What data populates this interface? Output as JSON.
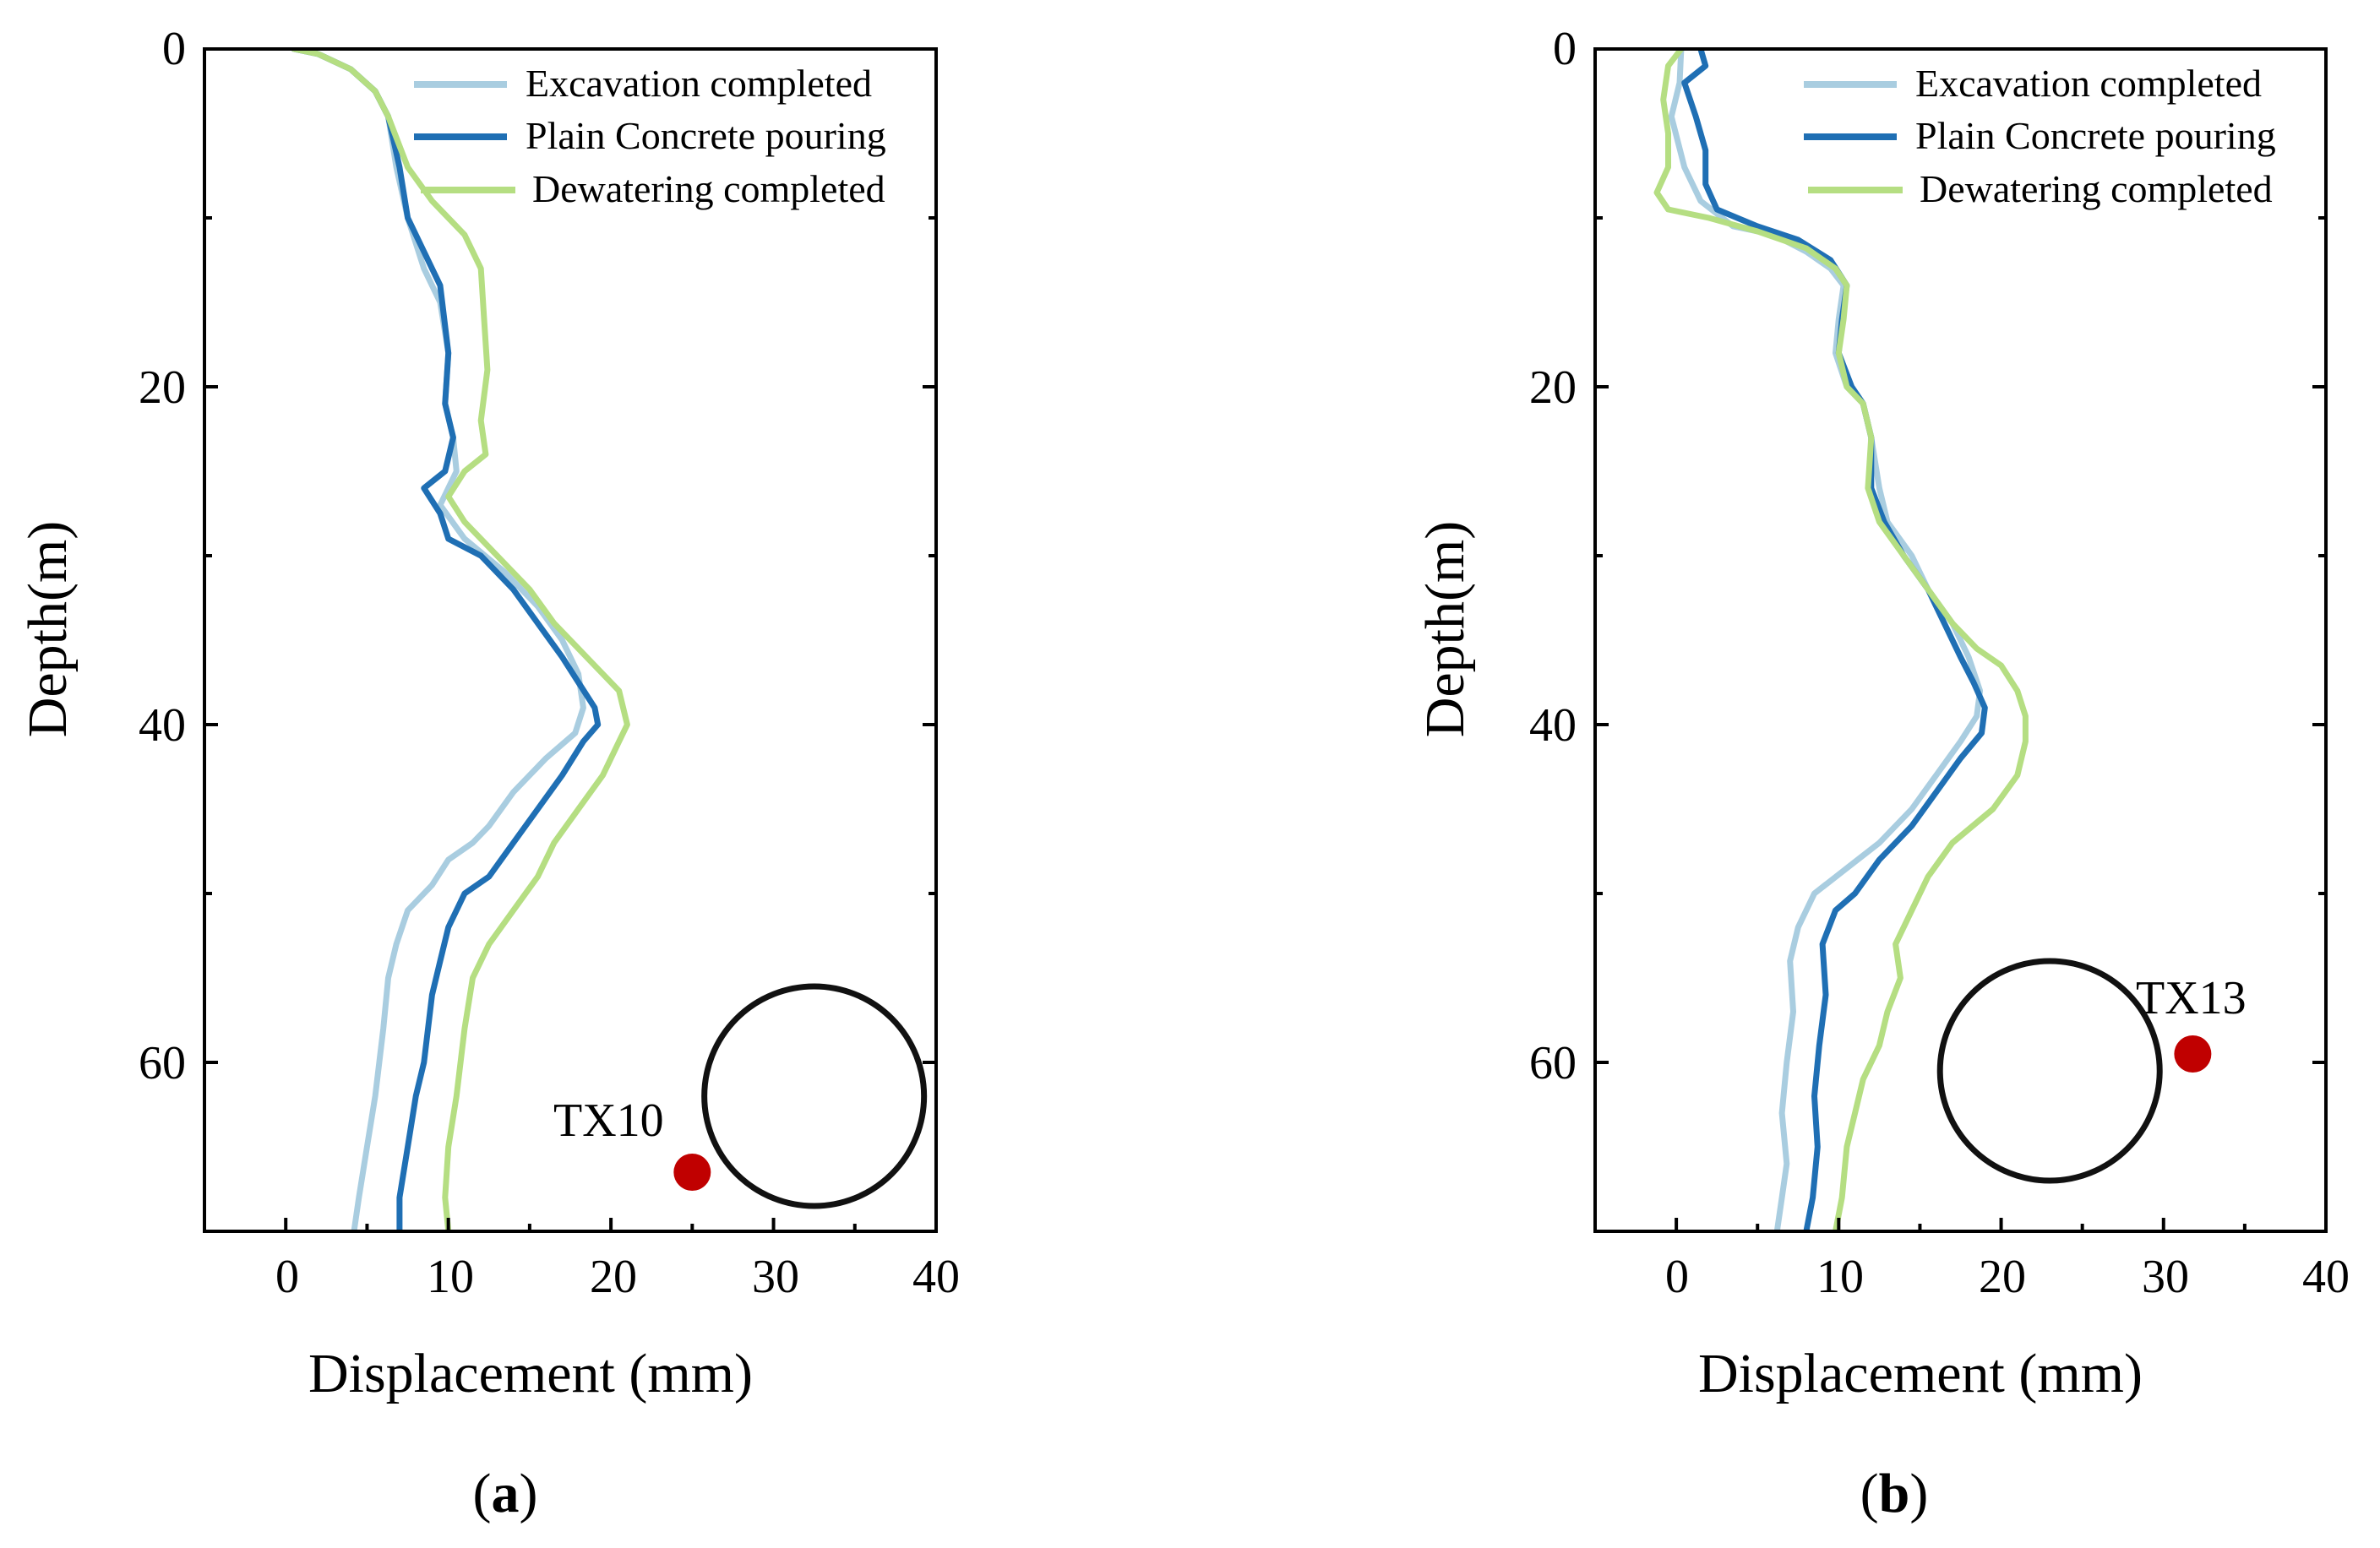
{
  "chart_data": [
    {
      "type": "line",
      "panel_label": "a",
      "xlabel": "Displacement (mm)",
      "ylabel": "Depth(m)",
      "xlim": [
        -5,
        40
      ],
      "ylim": [
        70,
        0
      ],
      "x_ticks": [
        0,
        10,
        20,
        30,
        40
      ],
      "y_ticks": [
        0,
        20,
        40,
        60
      ],
      "legend_position": "top-right",
      "series": [
        {
          "name": "Excavation completed",
          "color": "#a9cde0",
          "points": [
            [
              0.5,
              0
            ],
            [
              2,
              0.3
            ],
            [
              4,
              1.2
            ],
            [
              5.5,
              2.5
            ],
            [
              6.3,
              4
            ],
            [
              6.8,
              7
            ],
            [
              7.5,
              10
            ],
            [
              8.5,
              13
            ],
            [
              9.5,
              15
            ],
            [
              10,
              18
            ],
            [
              9.8,
              21
            ],
            [
              10.3,
              23
            ],
            [
              10.5,
              25
            ],
            [
              9.5,
              27
            ],
            [
              11,
              29
            ],
            [
              13.5,
              31
            ],
            [
              15.5,
              33
            ],
            [
              17,
              35
            ],
            [
              18,
              37
            ],
            [
              18.3,
              39
            ],
            [
              17.8,
              40.5
            ],
            [
              16,
              42
            ],
            [
              14,
              44
            ],
            [
              12.5,
              46
            ],
            [
              11.5,
              47
            ],
            [
              10,
              48
            ],
            [
              9,
              49.5
            ],
            [
              7.5,
              51
            ],
            [
              6.8,
              53
            ],
            [
              6.3,
              55
            ],
            [
              6,
              58
            ],
            [
              5.5,
              62
            ],
            [
              5,
              65
            ],
            [
              4.5,
              68
            ],
            [
              4.2,
              70
            ]
          ]
        },
        {
          "name": "Plain Concrete pouring",
          "color": "#1f6fb4",
          "points": [
            [
              0.5,
              0
            ],
            [
              2,
              0.3
            ],
            [
              4,
              1.2
            ],
            [
              5.5,
              2.5
            ],
            [
              6.3,
              4
            ],
            [
              7,
              7
            ],
            [
              7.5,
              10
            ],
            [
              8.5,
              12
            ],
            [
              9.5,
              14
            ],
            [
              10,
              18
            ],
            [
              9.8,
              21
            ],
            [
              10.3,
              23
            ],
            [
              9.8,
              25
            ],
            [
              8.5,
              26
            ],
            [
              9.5,
              27.5
            ],
            [
              10,
              29
            ],
            [
              12,
              30
            ],
            [
              14,
              32
            ],
            [
              15.5,
              34
            ],
            [
              17,
              36
            ],
            [
              18,
              37.5
            ],
            [
              19,
              39
            ],
            [
              19.2,
              40
            ],
            [
              18.3,
              41
            ],
            [
              17,
              43
            ],
            [
              15.5,
              45
            ],
            [
              14,
              47
            ],
            [
              12.5,
              49
            ],
            [
              11,
              50
            ],
            [
              10,
              52
            ],
            [
              9.5,
              54
            ],
            [
              9,
              56
            ],
            [
              8.5,
              60
            ],
            [
              8,
              62
            ],
            [
              7.5,
              65
            ],
            [
              7,
              68
            ],
            [
              7,
              70
            ]
          ]
        },
        {
          "name": "Dewatering completed",
          "color": "#b5de82",
          "points": [
            [
              0.5,
              0
            ],
            [
              2,
              0.3
            ],
            [
              4,
              1.2
            ],
            [
              5.5,
              2.5
            ],
            [
              6.3,
              4
            ],
            [
              7.5,
              7
            ],
            [
              9,
              9
            ],
            [
              11,
              11
            ],
            [
              12,
              13
            ],
            [
              12.2,
              16
            ],
            [
              12.4,
              19
            ],
            [
              12,
              22
            ],
            [
              12.3,
              24
            ],
            [
              11,
              25
            ],
            [
              10,
              26.5
            ],
            [
              11,
              28
            ],
            [
              13,
              30
            ],
            [
              15,
              32
            ],
            [
              16.5,
              34
            ],
            [
              18.5,
              36
            ],
            [
              20.5,
              38
            ],
            [
              21,
              40
            ],
            [
              20.5,
              41
            ],
            [
              19.5,
              43
            ],
            [
              18,
              45
            ],
            [
              16.5,
              47
            ],
            [
              15.5,
              49
            ],
            [
              14,
              51
            ],
            [
              12.5,
              53
            ],
            [
              11.5,
              55
            ],
            [
              11,
              58
            ],
            [
              10.5,
              62
            ],
            [
              10,
              65
            ],
            [
              9.8,
              68
            ],
            [
              10,
              70
            ]
          ]
        }
      ],
      "marker": {
        "label": "TX10",
        "x": 25,
        "y": 66.5,
        "color": "#c00000"
      },
      "tunnel_circle": {
        "cx": 32.5,
        "cy": 62
      }
    },
    {
      "type": "line",
      "panel_label": "b",
      "xlabel": "Displacement (mm)",
      "ylabel": "Depth(m)",
      "xlim": [
        -5,
        40
      ],
      "ylim": [
        70,
        0
      ],
      "x_ticks": [
        0,
        10,
        20,
        30,
        40
      ],
      "y_ticks": [
        0,
        20,
        40,
        60
      ],
      "legend_position": "top-right",
      "series": [
        {
          "name": "Excavation completed",
          "color": "#a9cde0",
          "points": [
            [
              0.3,
              0
            ],
            [
              0.2,
              2
            ],
            [
              -0.3,
              4
            ],
            [
              0.5,
              7
            ],
            [
              1.5,
              9
            ],
            [
              3.5,
              10.5
            ],
            [
              6,
              11
            ],
            [
              8,
              12
            ],
            [
              9.5,
              13
            ],
            [
              10.3,
              14
            ],
            [
              10,
              16
            ],
            [
              9.8,
              18
            ],
            [
              10.5,
              20
            ],
            [
              11.5,
              21
            ],
            [
              12,
              23
            ],
            [
              12.5,
              26
            ],
            [
              13,
              28
            ],
            [
              14.5,
              30
            ],
            [
              15.5,
              32
            ],
            [
              17,
              34
            ],
            [
              18,
              36
            ],
            [
              18.7,
              38
            ],
            [
              18.5,
              39.5
            ],
            [
              17.5,
              41
            ],
            [
              16,
              43
            ],
            [
              14.5,
              45
            ],
            [
              12.5,
              47
            ],
            [
              10.5,
              48.5
            ],
            [
              8.5,
              50
            ],
            [
              7.5,
              52
            ],
            [
              7,
              54
            ],
            [
              7.2,
              57
            ],
            [
              6.8,
              60
            ],
            [
              6.5,
              63
            ],
            [
              6.8,
              66
            ],
            [
              6.5,
              68
            ],
            [
              6.2,
              70
            ]
          ]
        },
        {
          "name": "Plain Concrete pouring",
          "color": "#1f6fb4",
          "points": [
            [
              1.5,
              0
            ],
            [
              1.8,
              1
            ],
            [
              0.5,
              2
            ],
            [
              1.2,
              4
            ],
            [
              1.8,
              6
            ],
            [
              1.8,
              8
            ],
            [
              2.5,
              9.5
            ],
            [
              5,
              10.5
            ],
            [
              7.5,
              11.3
            ],
            [
              9.5,
              12.5
            ],
            [
              10.5,
              14
            ],
            [
              10.2,
              16
            ],
            [
              10,
              18
            ],
            [
              10.8,
              20
            ],
            [
              11.5,
              21
            ],
            [
              12,
              23
            ],
            [
              12,
              26
            ],
            [
              12.8,
              28
            ],
            [
              14,
              30
            ],
            [
              15.5,
              32
            ],
            [
              16.5,
              34
            ],
            [
              17.5,
              36
            ],
            [
              18.3,
              37.5
            ],
            [
              19,
              39
            ],
            [
              18.8,
              40.5
            ],
            [
              17.5,
              42
            ],
            [
              16,
              44
            ],
            [
              14.5,
              46
            ],
            [
              12.5,
              48
            ],
            [
              11,
              50
            ],
            [
              9.8,
              51
            ],
            [
              9,
              53
            ],
            [
              9.2,
              56
            ],
            [
              8.8,
              59
            ],
            [
              8.5,
              62
            ],
            [
              8.7,
              65
            ],
            [
              8.4,
              68
            ],
            [
              8,
              70
            ]
          ]
        },
        {
          "name": "Dewatering completed",
          "color": "#b5de82",
          "points": [
            [
              0.3,
              0
            ],
            [
              -0.5,
              1
            ],
            [
              -0.8,
              3
            ],
            [
              -0.5,
              5
            ],
            [
              -0.5,
              7
            ],
            [
              -1.2,
              8.5
            ],
            [
              -0.5,
              9.5
            ],
            [
              2,
              10
            ],
            [
              5,
              10.8
            ],
            [
              8,
              11.8
            ],
            [
              9.8,
              13
            ],
            [
              10.5,
              14
            ],
            [
              10.3,
              16
            ],
            [
              10,
              18
            ],
            [
              10.5,
              20
            ],
            [
              11.5,
              21
            ],
            [
              12,
              23
            ],
            [
              11.8,
              26
            ],
            [
              12.5,
              28
            ],
            [
              14,
              30
            ],
            [
              15.5,
              32
            ],
            [
              17,
              34
            ],
            [
              18.5,
              35.5
            ],
            [
              20,
              36.5
            ],
            [
              21,
              38
            ],
            [
              21.5,
              39.5
            ],
            [
              21.5,
              41
            ],
            [
              21,
              43
            ],
            [
              19.5,
              45
            ],
            [
              17,
              47
            ],
            [
              15.5,
              49
            ],
            [
              14.5,
              51
            ],
            [
              13.5,
              53
            ],
            [
              13.8,
              55
            ],
            [
              13,
              57
            ],
            [
              12.5,
              59
            ],
            [
              11.5,
              61
            ],
            [
              11,
              63
            ],
            [
              10.5,
              65
            ],
            [
              10.2,
              68
            ],
            [
              9.8,
              70
            ]
          ]
        }
      ],
      "marker": {
        "label": "TX13",
        "x": 31.8,
        "y": 59.5,
        "color": "#c00000"
      },
      "tunnel_circle": {
        "cx": 23,
        "cy": 60.5
      }
    }
  ]
}
